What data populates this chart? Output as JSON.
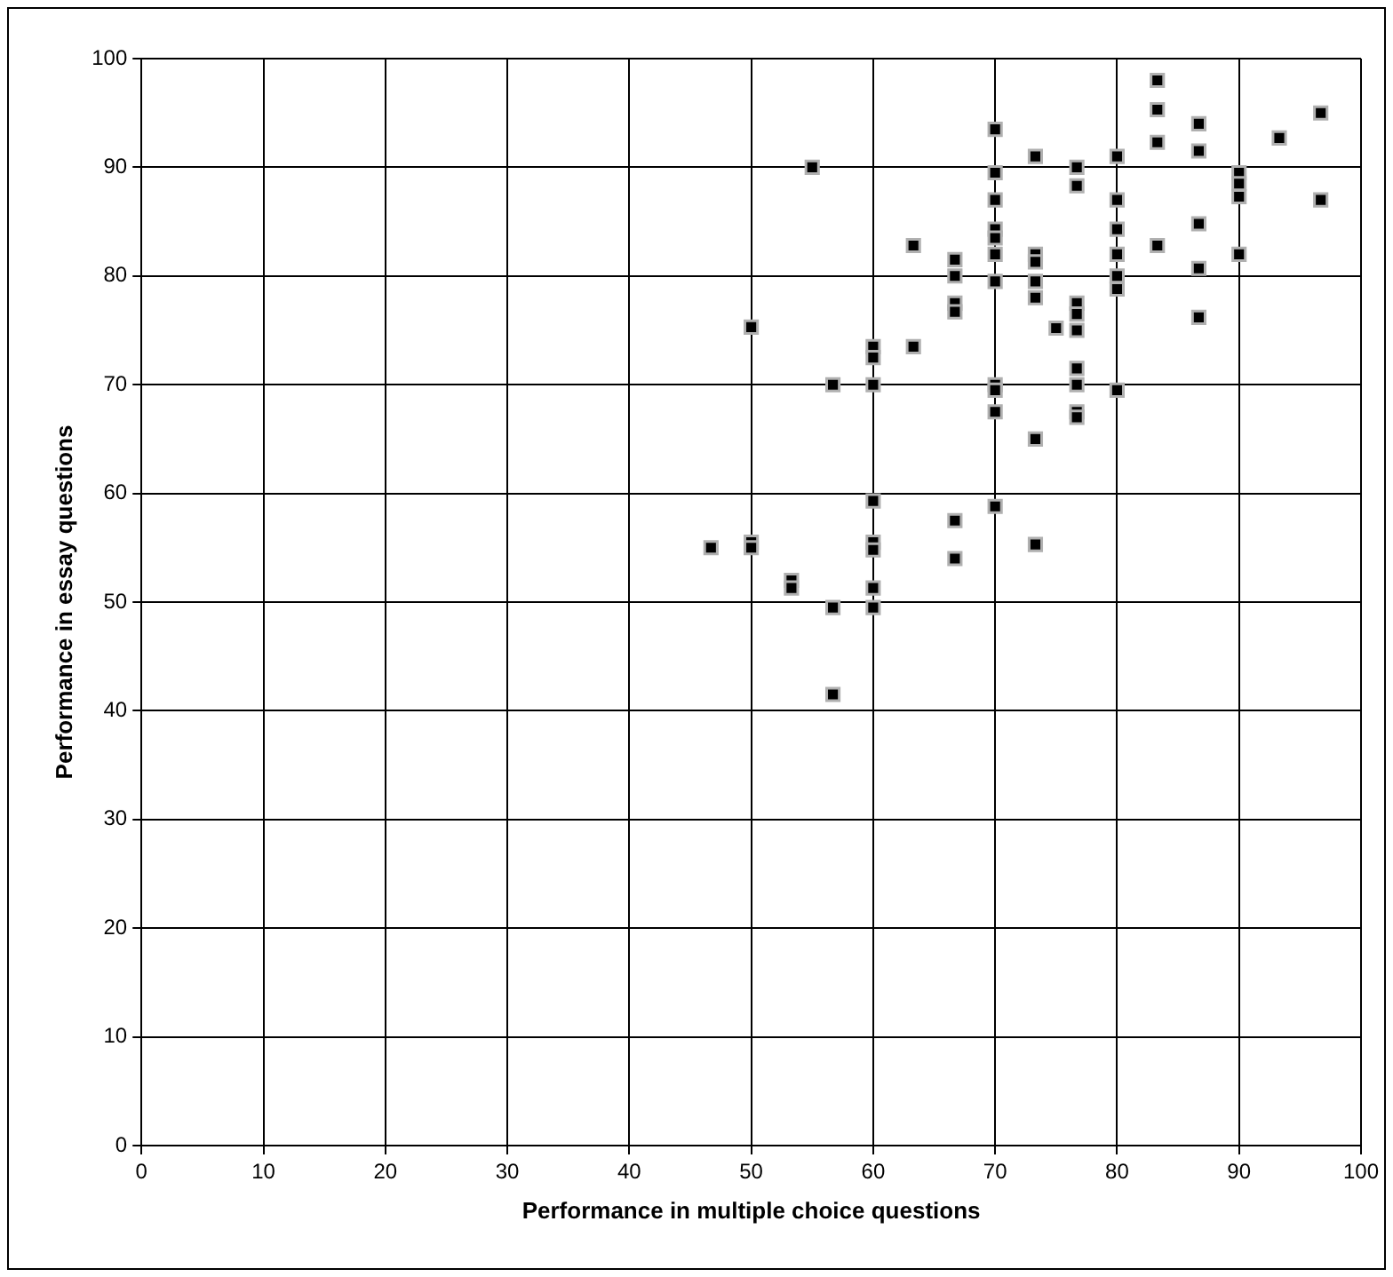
{
  "chart_data": {
    "type": "scatter",
    "xlabel": "Performance in multiple choice questions",
    "ylabel": "Performance in essay questions",
    "x": [
      46.7,
      50,
      50,
      50,
      53.3,
      53.3,
      55,
      56.7,
      56.7,
      56.7,
      60,
      60,
      60,
      60,
      60,
      60,
      60,
      60,
      63.3,
      63.3,
      66.7,
      66.7,
      66.7,
      66.7,
      66.7,
      66.7,
      70,
      70,
      70,
      70,
      70,
      70,
      70,
      70,
      70,
      70,
      70,
      73.3,
      73.3,
      73.3,
      73.3,
      73.3,
      73.3,
      73.3,
      75,
      76.7,
      76.7,
      76.7,
      76.7,
      76.7,
      76.7,
      76.7,
      76.7,
      76.7,
      80,
      80,
      80,
      80,
      80,
      80,
      80,
      83.3,
      83.3,
      83.3,
      83.3,
      86.7,
      86.7,
      86.7,
      86.7,
      86.7,
      90,
      90,
      90,
      90,
      93.3,
      96.7,
      96.7
    ],
    "series": [
      {
        "color": "#000000",
        "values": [
          55,
          75.3,
          55.5,
          55,
          52,
          51.3,
          90,
          70,
          49.5,
          41.5,
          73.5,
          72.5,
          70,
          59.3,
          55.5,
          54.8,
          51.3,
          49.5,
          82.8,
          73.5,
          81.5,
          80,
          77.5,
          76.7,
          57.5,
          54,
          93.5,
          89.5,
          87,
          84.3,
          83.5,
          82,
          79.5,
          70,
          69.5,
          67.5,
          58.8,
          91,
          82,
          81.3,
          79.5,
          78,
          65,
          55.3,
          75.2,
          90,
          88.3,
          77.5,
          76.5,
          75,
          71.5,
          70,
          67.5,
          67,
          91,
          87,
          84.3,
          82,
          80,
          78.8,
          69.5,
          98,
          95.3,
          92.3,
          82.8,
          94,
          91.5,
          84.8,
          80.7,
          76.2,
          89.5,
          88.5,
          87.3,
          82,
          92.7,
          95,
          87
        ]
      }
    ],
    "xlim": [
      0,
      100
    ],
    "xticks": [
      0,
      10,
      20,
      30,
      40,
      50,
      60,
      70,
      80,
      90,
      100
    ],
    "ylim": [
      0,
      100
    ],
    "yticks": [
      0,
      10,
      20,
      30,
      40,
      50,
      60,
      70,
      80,
      90,
      100
    ],
    "grid": true,
    "marker": "square"
  }
}
